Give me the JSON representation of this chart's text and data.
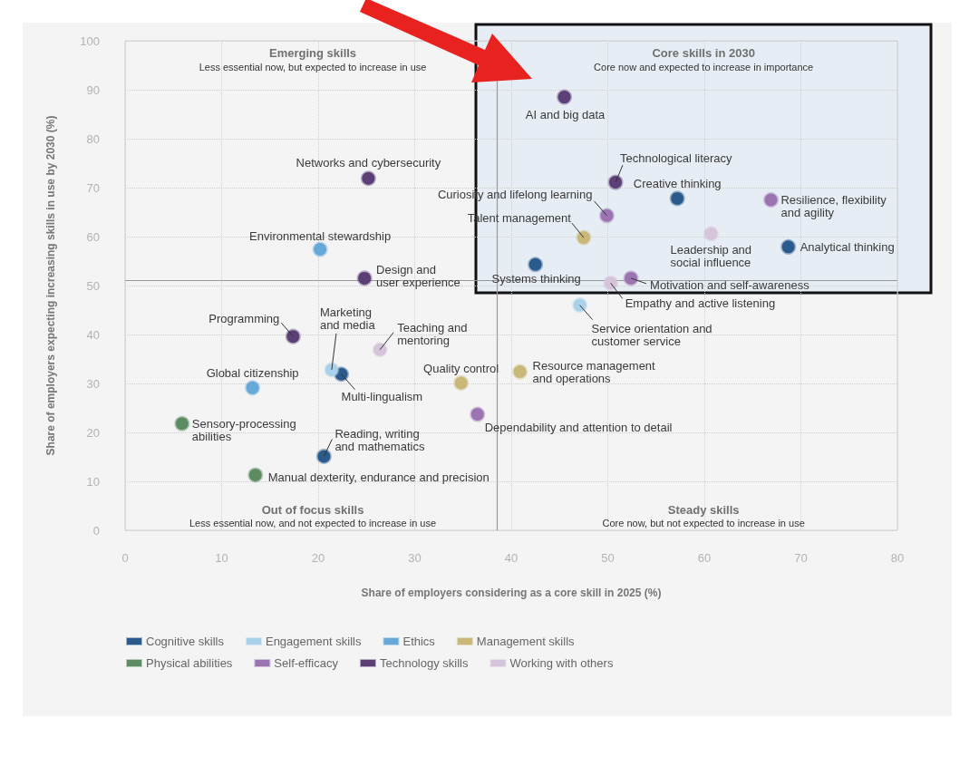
{
  "chart_data": {
    "type": "scatter",
    "xlabel": "Share of employers considering as a core skill in 2025 (%)",
    "ylabel": "Share of employers expecting increasing skills in use by 2030 (%)",
    "xlim": [
      0,
      80
    ],
    "xticks": [
      0,
      10,
      20,
      30,
      40,
      50,
      60,
      70,
      80
    ],
    "ylim": [
      0,
      100
    ],
    "yticks": [
      0,
      10,
      20,
      30,
      40,
      50,
      60,
      70,
      80,
      90,
      100
    ],
    "grid": true,
    "legend": "bottom left",
    "marker": "circle",
    "series": [
      {
        "name": "Cognitive skills",
        "color": "#2a5b8c",
        "x": [
          57.2,
          68.7,
          42.5,
          22.4,
          20.6
        ],
        "values": [
          67.8,
          57.9,
          54.3,
          31.9,
          15.1
        ]
      },
      {
        "name": "Engagement skills",
        "color": "#a9d1ea",
        "x": [
          47.1,
          21.4
        ],
        "values": [
          46.0,
          32.8
        ]
      },
      {
        "name": "Ethics",
        "color": "#66a8d8",
        "x": [
          20.2,
          13.2
        ],
        "values": [
          57.4,
          29.1
        ]
      },
      {
        "name": "Management skills",
        "color": "#c9b878",
        "x": [
          47.5,
          34.8,
          40.9
        ],
        "values": [
          59.8,
          30.1,
          32.4
        ]
      },
      {
        "name": "Physical abilities",
        "color": "#5e8c62",
        "x": [
          5.9,
          13.5
        ],
        "values": [
          21.8,
          11.3
        ]
      },
      {
        "name": "Self-efficacy",
        "color": "#9c74b2",
        "x": [
          66.9,
          49.9,
          52.4,
          36.5
        ],
        "values": [
          67.5,
          64.3,
          51.5,
          23.7
        ]
      },
      {
        "name": "Technology skills",
        "color": "#5b3f76",
        "x": [
          45.5,
          25.2,
          50.8,
          24.8,
          17.4
        ],
        "values": [
          88.5,
          71.9,
          71.1,
          51.5,
          39.6
        ]
      },
      {
        "name": "Working with others",
        "color": "#d6c4da",
        "x": [
          60.7,
          50.3,
          26.4
        ],
        "values": [
          60.6,
          50.5,
          36.9
        ]
      }
    ],
    "ref_lines": [
      {
        "axis": "x",
        "value": 38.5,
        "color": "#9a9a9a"
      },
      {
        "axis": "y",
        "value": 51,
        "color": "#9a9a9a"
      }
    ],
    "annotations": [
      "Emerging skills\nLess essential now, but expected to increase in use",
      "Core skills in 2030\nCore now and expected to increase in importance",
      "Out of focus skills\nLess essential now, and not expected to increase in use",
      "Steady skills\nCore now, but not expected to increase in use",
      {
        "text": "AI and big data",
        "x": 45.5,
        "y": 88.5
      },
      {
        "text": "Networks and cybersecurity",
        "x": 25.2,
        "y": 71.9
      },
      {
        "text": "Technological literacy",
        "x": 50.8,
        "y": 71.1
      },
      {
        "text": "Creative thinking",
        "x": 57.2,
        "y": 67.8
      },
      {
        "text": "Curiosity and lifelong learning",
        "x": 49.9,
        "y": 64.3
      },
      {
        "text": "Resilience, flexibility\nand agility",
        "x": 66.9,
        "y": 67.5
      },
      {
        "text": "Talent management",
        "x": 47.5,
        "y": 59.8
      },
      {
        "text": "Environmental stewardship",
        "x": 20.2,
        "y": 57.4
      },
      {
        "text": "Leadership and\nsocial influence",
        "x": 60.7,
        "y": 60.6
      },
      {
        "text": "Analytical thinking",
        "x": 68.7,
        "y": 57.9
      },
      {
        "text": "Systems thinking",
        "x": 42.5,
        "y": 54.3
      },
      {
        "text": "Design and\nuser experience",
        "x": 24.8,
        "y": 51.5
      },
      {
        "text": "Motivation and self-awareness",
        "x": 52.4,
        "y": 51.5
      },
      {
        "text": "Empathy and active listening",
        "x": 50.3,
        "y": 50.5
      },
      {
        "text": "Service orientation and\ncustomer service",
        "x": 47.1,
        "y": 46.0
      },
      {
        "text": "Programming",
        "x": 17.4,
        "y": 39.6
      },
      {
        "text": "Marketing\nand media",
        "x": 21.4,
        "y": 32.8
      },
      {
        "text": "Teaching and\nmentoring",
        "x": 26.4,
        "y": 36.9
      },
      {
        "text": "Multi-lingualism",
        "x": 22.4,
        "y": 31.9
      },
      {
        "text": "Global citizenship",
        "x": 13.2,
        "y": 29.1
      },
      {
        "text": "Quality control",
        "x": 34.8,
        "y": 30.1
      },
      {
        "text": "Resource management\nand operations",
        "x": 40.9,
        "y": 32.4
      },
      {
        "text": "Dependability and attention to detail",
        "x": 36.5,
        "y": 23.7
      },
      {
        "text": "Sensory-processing\nabilities",
        "x": 5.9,
        "y": 21.8
      },
      {
        "text": "Reading, writing\nand mathematics",
        "x": 20.6,
        "y": 15.1
      },
      {
        "text": "Manual dexterity, endurance and precision",
        "x": 13.5,
        "y": 11.3
      }
    ]
  }
}
